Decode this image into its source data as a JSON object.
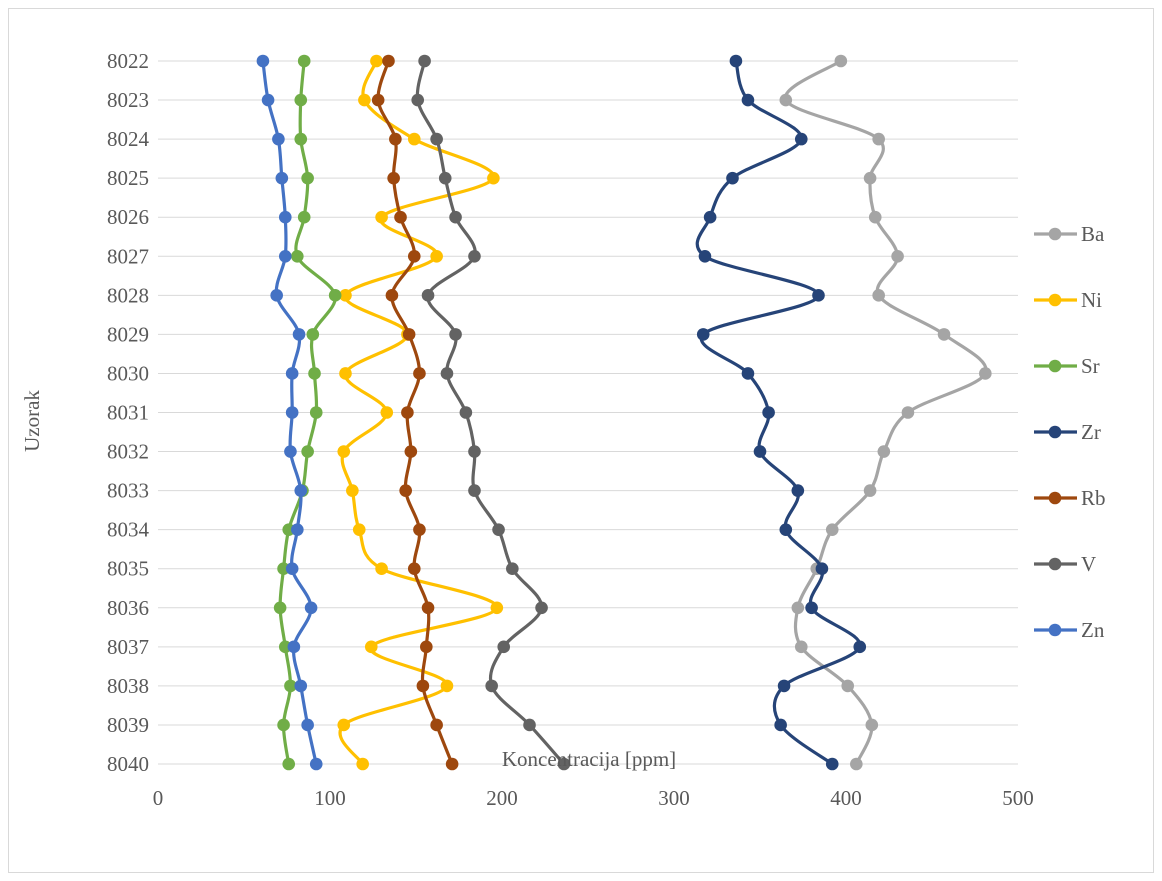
{
  "chart_data": {
    "type": "line",
    "orientation": "horizontal-values",
    "title": "",
    "xlabel": "Koncentracija [ppm]",
    "ylabel": "Uzorak",
    "xlim": [
      0,
      500
    ],
    "xticks": [
      "0",
      "100",
      "200",
      "300",
      "400",
      "500"
    ],
    "grid": "horizontal",
    "legend_position": "right",
    "categories": [
      "8022",
      "8023",
      "8024",
      "8025",
      "8026",
      "8027",
      "8028",
      "8029",
      "8030",
      "8031",
      "8032",
      "8033",
      "8034",
      "8035",
      "8036",
      "8037",
      "8038",
      "8039",
      "8040"
    ],
    "series": [
      {
        "name": "Ba",
        "color": "#a5a5a5",
        "values": [
          397,
          365,
          419,
          414,
          417,
          430,
          419,
          457,
          481,
          436,
          422,
          414,
          392,
          383,
          372,
          374,
          401,
          415,
          406
        ]
      },
      {
        "name": "Ni",
        "color": "#ffc000",
        "values": [
          127,
          120,
          149,
          195,
          130,
          162,
          109,
          145,
          109,
          133,
          108,
          113,
          117,
          130,
          197,
          124,
          168,
          108,
          119
        ]
      },
      {
        "name": "Sr",
        "color": "#70ad47",
        "values": [
          85,
          83,
          83,
          87,
          85,
          81,
          103,
          90,
          91,
          92,
          87,
          84,
          76,
          73,
          71,
          74,
          77,
          73,
          76
        ]
      },
      {
        "name": "Zr",
        "color": "#264478",
        "values": [
          336,
          343,
          374,
          334,
          321,
          318,
          384,
          317,
          343,
          355,
          350,
          372,
          365,
          386,
          380,
          408,
          364,
          362,
          392
        ]
      },
      {
        "name": "Rb",
        "color": "#9e480e",
        "values": [
          134,
          128,
          138,
          137,
          141,
          149,
          136,
          146,
          152,
          145,
          147,
          144,
          152,
          149,
          157,
          156,
          154,
          162,
          171
        ]
      },
      {
        "name": "V",
        "color": "#636363",
        "values": [
          155,
          151,
          162,
          167,
          173,
          184,
          157,
          173,
          168,
          179,
          184,
          184,
          198,
          206,
          223,
          201,
          194,
          216,
          236
        ]
      },
      {
        "name": "Zn",
        "color": "#4472c4",
        "values": [
          61,
          64,
          70,
          72,
          74,
          74,
          69,
          82,
          78,
          78,
          77,
          83,
          81,
          78,
          89,
          79,
          83,
          87,
          92
        ]
      }
    ]
  }
}
